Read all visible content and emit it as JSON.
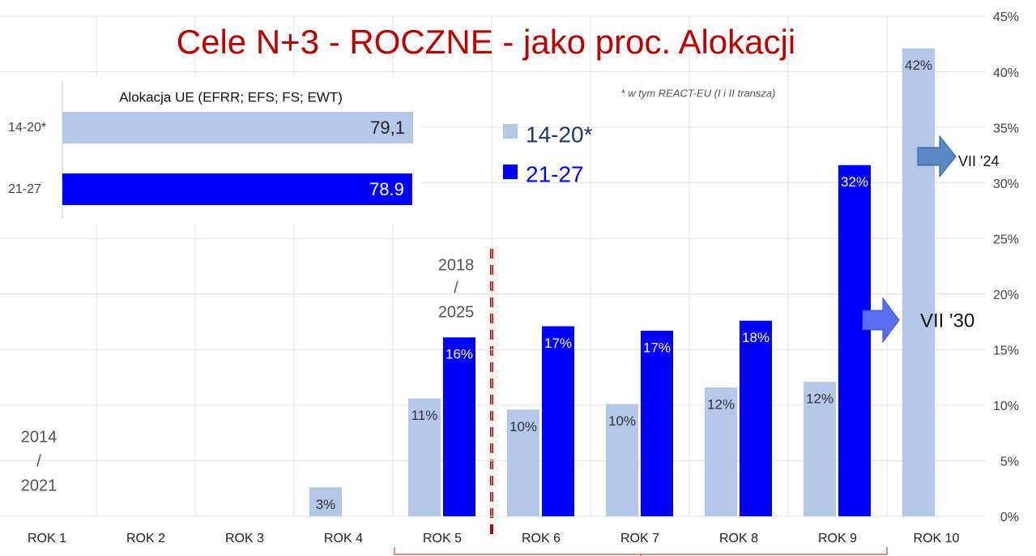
{
  "chart_data": [
    {
      "type": "bar",
      "title": "Cele N+3 - ROCZNE - jako proc. Alokacji",
      "note": "* w tym REACT-EU (I i II transza)",
      "annotations": [
        "2018",
        "/",
        "2025",
        "2014",
        "/",
        "2021",
        "VII '24",
        "VII '30"
      ],
      "categories": [
        "ROK 1",
        "ROK 2",
        "ROK 3",
        "ROK 4",
        "ROK 5",
        "ROK 6",
        "ROK 7",
        "ROK 8",
        "ROK 9",
        "ROK 10"
      ],
      "series": [
        {
          "name": "14-20*",
          "color": "#b4c7e7",
          "values": [
            null,
            null,
            null,
            2.6,
            10.6,
            9.6,
            10.1,
            11.6,
            12.1,
            42.1
          ],
          "value_labels": [
            null,
            null,
            null,
            "3%",
            "11%",
            "10%",
            "10%",
            "12%",
            "12%",
            "42%"
          ]
        },
        {
          "name": "21-27",
          "color": "#0000ff",
          "values": [
            null,
            null,
            null,
            null,
            16.1,
            17.1,
            16.7,
            17.6,
            31.6,
            null
          ],
          "value_labels": [
            null,
            null,
            null,
            null,
            "16%",
            "17%",
            "17%",
            "18%",
            "32%",
            null
          ]
        }
      ],
      "ylim": [
        0,
        45
      ],
      "yticks": [
        {
          "value": 0,
          "label": "0%"
        },
        {
          "value": 5,
          "label": "5%"
        },
        {
          "value": 10,
          "label": "10%"
        },
        {
          "value": 15,
          "label": "15%"
        },
        {
          "value": 20,
          "label": "20%"
        },
        {
          "value": 25,
          "label": "25%"
        },
        {
          "value": 30,
          "label": "30%"
        },
        {
          "value": 35,
          "label": "35%"
        },
        {
          "value": 40,
          "label": "40%"
        },
        {
          "value": 45,
          "label": "45%"
        }
      ],
      "grid": true
    },
    {
      "type": "barh",
      "title": "Alokacja UE (EFRR; EFS; FS; EWT)",
      "categories": [
        "14-20*",
        "21-27"
      ],
      "values": [
        79.1,
        78.9
      ],
      "value_labels": [
        "79,1",
        "78.9"
      ],
      "colors": [
        "#b4c7e7",
        "#0000ff"
      ],
      "xlim": [
        0,
        79.1
      ]
    }
  ]
}
